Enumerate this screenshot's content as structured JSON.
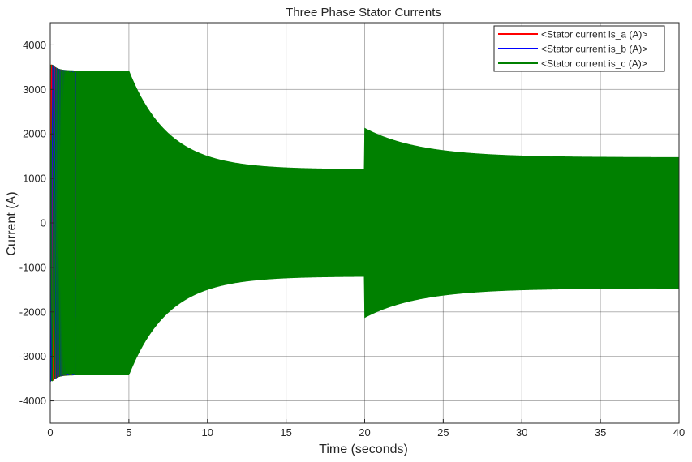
{
  "chart_data": {
    "type": "line",
    "title": "Three Phase Stator Currents",
    "xlabel": "Time (seconds)",
    "ylabel": "Current (A)",
    "xlim": [
      0,
      40
    ],
    "ylim": [
      -4500,
      4500
    ],
    "xticks": [
      0,
      5,
      10,
      15,
      20,
      25,
      30,
      35,
      40
    ],
    "yticks": [
      -4000,
      -3000,
      -2000,
      -1000,
      0,
      1000,
      2000,
      3000,
      4000
    ],
    "grid": true,
    "legend_position": "top-right",
    "series": [
      {
        "name": "<Stator current is_a (A)>",
        "color": "#ff0000"
      },
      {
        "name": "<Stator current is_b (A)>",
        "color": "#0000ff"
      },
      {
        "name": "<Stator current is_c (A)>",
        "color": "#008000"
      }
    ],
    "envelope": {
      "description_points": [
        {
          "t": 0.1,
          "amplitude": 3550
        },
        {
          "t": 1.5,
          "amplitude": 3420
        },
        {
          "t": 5.0,
          "amplitude": 3420
        },
        {
          "t": 8.0,
          "amplitude": 1700
        },
        {
          "t": 12.0,
          "amplitude": 1300
        },
        {
          "t": 19.95,
          "amplitude": 1220
        },
        {
          "t": 20.05,
          "amplitude": 2130
        },
        {
          "t": 25.0,
          "amplitude": 1620
        },
        {
          "t": 30.0,
          "amplitude": 1490
        },
        {
          "t": 40.0,
          "amplitude": 1470
        }
      ]
    }
  }
}
